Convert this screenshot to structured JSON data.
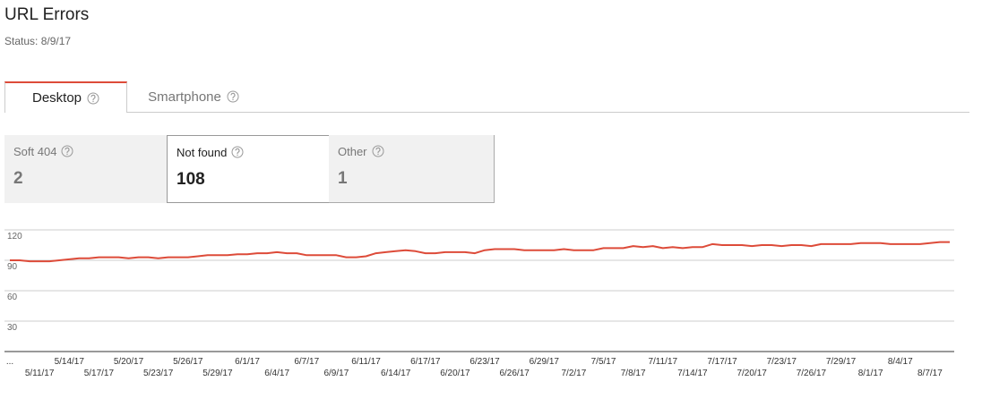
{
  "header": {
    "title": "URL Errors",
    "status": "Status: 8/9/17"
  },
  "tabs": [
    {
      "label": "Desktop",
      "active": true
    },
    {
      "label": "Smartphone",
      "active": false
    }
  ],
  "summary": [
    {
      "label": "Soft 404",
      "value": 2,
      "selected": false
    },
    {
      "label": "Not found",
      "value": 108,
      "selected": true
    },
    {
      "label": "Other",
      "value": 1,
      "selected": false
    }
  ],
  "chart_data": {
    "type": "line",
    "color": "#dd4b39",
    "grid": true,
    "ylim": [
      0,
      120
    ],
    "yticks": [
      30,
      60,
      90,
      120
    ],
    "categories": [
      "...",
      null,
      null,
      "5/11/17",
      null,
      null,
      "5/14/17",
      null,
      null,
      "5/17/17",
      null,
      null,
      "5/20/17",
      null,
      null,
      "5/23/17",
      null,
      null,
      "5/26/17",
      null,
      null,
      "5/29/17",
      null,
      null,
      "6/1/17",
      null,
      null,
      "6/4/17",
      null,
      null,
      "6/7/17",
      null,
      null,
      "6/9/17",
      null,
      null,
      "6/11/17",
      null,
      null,
      "6/14/17",
      null,
      null,
      "6/17/17",
      null,
      null,
      "6/20/17",
      null,
      null,
      "6/23/17",
      null,
      null,
      "6/26/17",
      null,
      null,
      "6/29/17",
      null,
      null,
      "7/2/17",
      null,
      null,
      "7/5/17",
      null,
      null,
      "7/8/17",
      null,
      null,
      "7/11/17",
      null,
      null,
      "7/14/17",
      null,
      null,
      "7/17/17",
      null,
      null,
      "7/20/17",
      null,
      null,
      "7/23/17",
      null,
      null,
      "7/26/17",
      null,
      null,
      "7/29/17",
      null,
      null,
      "8/1/17",
      null,
      null,
      "8/4/17",
      null,
      null,
      "8/7/17",
      null,
      null
    ],
    "values": [
      90,
      90,
      89,
      89,
      89,
      90,
      91,
      92,
      92,
      93,
      93,
      93,
      92,
      93,
      93,
      92,
      93,
      93,
      93,
      94,
      95,
      95,
      95,
      96,
      96,
      97,
      97,
      98,
      97,
      97,
      95,
      95,
      95,
      95,
      93,
      93,
      94,
      97,
      98,
      99,
      100,
      99,
      97,
      97,
      98,
      98,
      98,
      97,
      100,
      101,
      101,
      101,
      100,
      100,
      100,
      100,
      101,
      100,
      100,
      100,
      102,
      102,
      102,
      104,
      103,
      104,
      102,
      103,
      102,
      103,
      103,
      106,
      105,
      105,
      105,
      104,
      105,
      105,
      104,
      105,
      105,
      104,
      106,
      106,
      106,
      106,
      107,
      107,
      107,
      106,
      106,
      106,
      106,
      107,
      108,
      108
    ]
  }
}
